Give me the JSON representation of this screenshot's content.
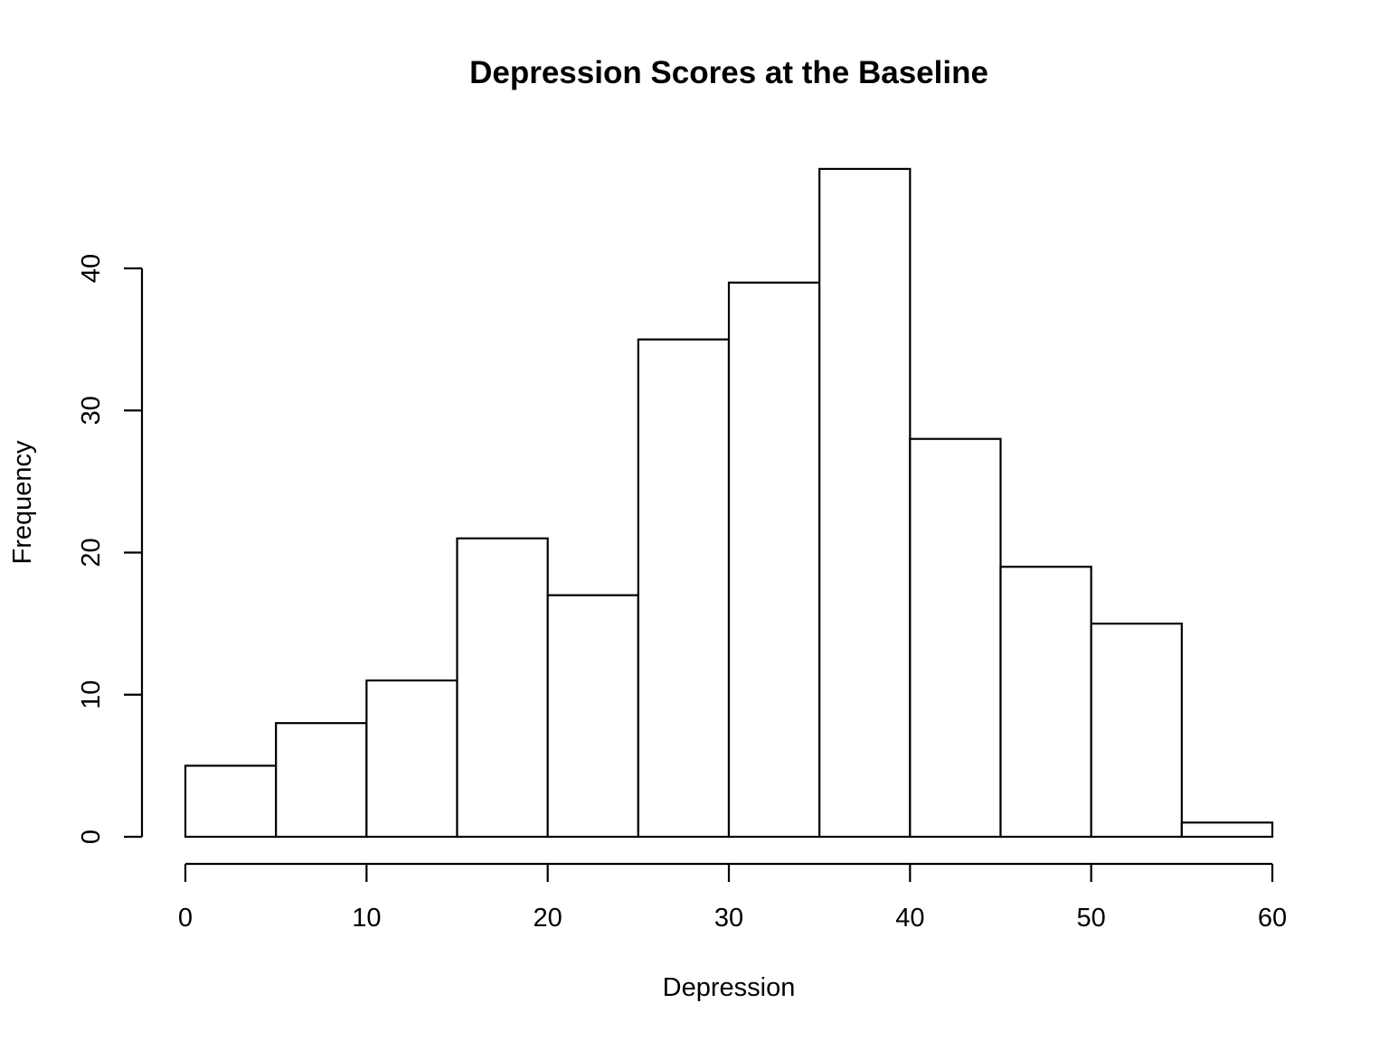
{
  "chart_data": {
    "type": "bar",
    "title": "Depression Scores at the Baseline",
    "xlabel": "Depression",
    "ylabel": "Frequency",
    "bins": [
      {
        "start": 0,
        "end": 5,
        "count": 5
      },
      {
        "start": 5,
        "end": 10,
        "count": 8
      },
      {
        "start": 10,
        "end": 15,
        "count": 11
      },
      {
        "start": 15,
        "end": 20,
        "count": 21
      },
      {
        "start": 20,
        "end": 25,
        "count": 17
      },
      {
        "start": 25,
        "end": 30,
        "count": 35
      },
      {
        "start": 30,
        "end": 35,
        "count": 39
      },
      {
        "start": 35,
        "end": 40,
        "count": 47
      },
      {
        "start": 40,
        "end": 45,
        "count": 28
      },
      {
        "start": 45,
        "end": 50,
        "count": 19
      },
      {
        "start": 50,
        "end": 55,
        "count": 15
      },
      {
        "start": 55,
        "end": 60,
        "count": 1
      }
    ],
    "x_ticks": [
      0,
      10,
      20,
      30,
      40,
      50,
      60
    ],
    "y_ticks": [
      0,
      10,
      20,
      30,
      40
    ],
    "xlim": [
      0,
      60
    ],
    "ylim": [
      0,
      47
    ],
    "grid": false,
    "bar_fill": "#ffffff",
    "bar_stroke": "#000000"
  }
}
